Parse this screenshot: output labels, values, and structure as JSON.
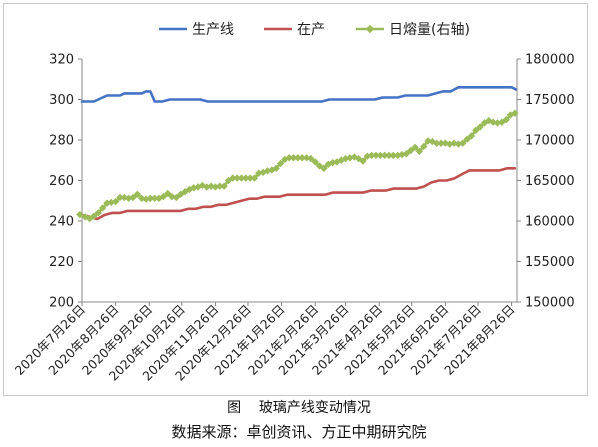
{
  "figure": {
    "caption_number": "图",
    "caption_title": "玻璃产线变动情况",
    "source_note": "数据来源：卓创资讯、方正中期研究院"
  },
  "chart_data": {
    "type": "line",
    "x_ticks": [
      "2020年7月26日",
      "2020年8月26日",
      "2020年9月26日",
      "2020年10月26日",
      "2020年11月26日",
      "2020年12月26日",
      "2021年1月26日",
      "2021年2月26日",
      "2021年3月26日",
      "2021年4月26日",
      "2021年5月26日",
      "2021年6月26日",
      "2021年7月26日",
      "2021年8月26日"
    ],
    "y_left_ticks": [
      "200",
      "220",
      "240",
      "260",
      "280",
      "300",
      "320"
    ],
    "y_right_ticks": [
      "150000",
      "155000",
      "160000",
      "165000",
      "170000",
      "175000",
      "180000"
    ],
    "ylim_left": [
      200,
      320
    ],
    "ylim_right": [
      150000,
      180000
    ],
    "grid": false,
    "legend_position": "top",
    "colors": {
      "生产线": "#4472c4",
      "在产": "#c0504d",
      "日熔量(右轴)": "#9bbb59"
    },
    "series": [
      {
        "name": "生产线",
        "axis": "left",
        "x": [
          "2020-07-26",
          "2020-07-29",
          "2020-08-02",
          "2020-08-06",
          "2020-08-10",
          "2020-08-14",
          "2020-08-18",
          "2020-08-22",
          "2020-08-26",
          "2020-08-30",
          "2020-09-03",
          "2020-09-07",
          "2020-09-11",
          "2020-09-15",
          "2020-09-19",
          "2020-09-23",
          "2020-09-27",
          "2020-10-01",
          "2020-10-08",
          "2020-10-15",
          "2020-10-22",
          "2020-10-29",
          "2020-11-05",
          "2020-11-12",
          "2020-11-19",
          "2020-11-26",
          "2020-12-03",
          "2020-12-10",
          "2020-12-17",
          "2020-12-24",
          "2020-12-31",
          "2021-01-07",
          "2021-01-14",
          "2021-01-21",
          "2021-01-28",
          "2021-02-04",
          "2021-02-11",
          "2021-02-18",
          "2021-02-25",
          "2021-03-04",
          "2021-03-11",
          "2021-03-18",
          "2021-03-25",
          "2021-04-01",
          "2021-04-08",
          "2021-04-15",
          "2021-04-22",
          "2021-04-29",
          "2021-05-06",
          "2021-05-13",
          "2021-05-20",
          "2021-05-27",
          "2021-06-03",
          "2021-06-10",
          "2021-06-17",
          "2021-06-24",
          "2021-07-01",
          "2021-07-08",
          "2021-07-15",
          "2021-07-22",
          "2021-07-29",
          "2021-08-05",
          "2021-08-12",
          "2021-08-19",
          "2021-08-26",
          "2021-08-30"
        ],
        "y": [
          299,
          299,
          299,
          299,
          300,
          301,
          302,
          302,
          302,
          302,
          303,
          303,
          303,
          303,
          303,
          304,
          304,
          299,
          299,
          300,
          300,
          300,
          300,
          300,
          299,
          299,
          299,
          299,
          299,
          299,
          299,
          299,
          299,
          299,
          299,
          299,
          299,
          299,
          299,
          299,
          300,
          300,
          300,
          300,
          300,
          300,
          300,
          301,
          301,
          301,
          302,
          302,
          302,
          302,
          303,
          304,
          304,
          306,
          306,
          306,
          306,
          306,
          306,
          306,
          306,
          305
        ]
      },
      {
        "name": "在产",
        "axis": "left",
        "x": [
          "2020-07-26",
          "2020-08-02",
          "2020-08-09",
          "2020-08-16",
          "2020-08-23",
          "2020-08-30",
          "2020-09-06",
          "2020-09-13",
          "2020-09-20",
          "2020-09-27",
          "2020-10-04",
          "2020-10-11",
          "2020-10-18",
          "2020-10-25",
          "2020-11-01",
          "2020-11-08",
          "2020-11-15",
          "2020-11-22",
          "2020-11-29",
          "2020-12-06",
          "2020-12-13",
          "2020-12-20",
          "2020-12-27",
          "2021-01-03",
          "2021-01-10",
          "2021-01-17",
          "2021-01-24",
          "2021-01-31",
          "2021-02-07",
          "2021-02-14",
          "2021-02-21",
          "2021-02-28",
          "2021-03-07",
          "2021-03-14",
          "2021-03-21",
          "2021-03-28",
          "2021-04-04",
          "2021-04-11",
          "2021-04-18",
          "2021-04-25",
          "2021-05-02",
          "2021-05-09",
          "2021-05-16",
          "2021-05-23",
          "2021-05-30",
          "2021-06-06",
          "2021-06-13",
          "2021-06-20",
          "2021-06-27",
          "2021-07-04",
          "2021-07-11",
          "2021-07-18",
          "2021-07-25",
          "2021-08-01",
          "2021-08-08",
          "2021-08-15",
          "2021-08-22",
          "2021-08-29"
        ],
        "y": [
          243,
          242,
          241,
          243,
          244,
          244,
          245,
          245,
          245,
          245,
          245,
          245,
          245,
          245,
          246,
          246,
          247,
          247,
          248,
          248,
          249,
          250,
          251,
          251,
          252,
          252,
          252,
          253,
          253,
          253,
          253,
          253,
          253,
          254,
          254,
          254,
          254,
          254,
          255,
          255,
          255,
          256,
          256,
          256,
          256,
          257,
          259,
          260,
          260,
          261,
          263,
          265,
          265,
          265,
          265,
          265,
          266,
          266
        ]
      },
      {
        "name": "日熔量(右轴)",
        "axis": "right",
        "x": [
          "2020-07-24",
          "2020-07-29",
          "2020-08-02",
          "2020-08-06",
          "2020-08-10",
          "2020-08-14",
          "2020-08-18",
          "2020-08-22",
          "2020-08-26",
          "2020-08-30",
          "2020-09-03",
          "2020-09-07",
          "2020-09-11",
          "2020-09-15",
          "2020-09-19",
          "2020-09-23",
          "2020-09-27",
          "2020-10-01",
          "2020-10-05",
          "2020-10-09",
          "2020-10-13",
          "2020-10-17",
          "2020-10-21",
          "2020-10-25",
          "2020-10-29",
          "2020-11-02",
          "2020-11-06",
          "2020-11-10",
          "2020-11-14",
          "2020-11-18",
          "2020-11-22",
          "2020-11-26",
          "2020-11-30",
          "2020-12-04",
          "2020-12-08",
          "2020-12-12",
          "2020-12-16",
          "2020-12-20",
          "2020-12-24",
          "2020-12-28",
          "2021-01-01",
          "2021-01-05",
          "2021-01-09",
          "2021-01-13",
          "2021-01-17",
          "2021-01-21",
          "2021-01-25",
          "2021-01-29",
          "2021-02-02",
          "2021-02-06",
          "2021-02-10",
          "2021-02-14",
          "2021-02-18",
          "2021-02-22",
          "2021-02-26",
          "2021-03-02",
          "2021-03-06",
          "2021-03-10",
          "2021-03-14",
          "2021-03-18",
          "2021-03-22",
          "2021-03-26",
          "2021-03-30",
          "2021-04-03",
          "2021-04-07",
          "2021-04-11",
          "2021-04-15",
          "2021-04-19",
          "2021-04-23",
          "2021-04-27",
          "2021-05-01",
          "2021-05-05",
          "2021-05-09",
          "2021-05-13",
          "2021-05-17",
          "2021-05-21",
          "2021-05-25",
          "2021-05-29",
          "2021-06-02",
          "2021-06-06",
          "2021-06-10",
          "2021-06-14",
          "2021-06-18",
          "2021-06-22",
          "2021-06-26",
          "2021-06-30",
          "2021-07-04",
          "2021-07-08",
          "2021-07-12",
          "2021-07-16",
          "2021-07-20",
          "2021-07-24",
          "2021-07-28",
          "2021-08-01",
          "2021-08-05",
          "2021-08-09",
          "2021-08-13",
          "2021-08-17",
          "2021-08-21",
          "2021-08-25",
          "2021-08-29"
        ],
        "y": [
          160800,
          160500,
          160300,
          160600,
          161000,
          161600,
          162200,
          162300,
          162400,
          162900,
          162900,
          162800,
          162900,
          163300,
          162800,
          162700,
          162800,
          162800,
          162800,
          163000,
          163400,
          163000,
          162900,
          163300,
          163600,
          163900,
          164100,
          164200,
          164400,
          164200,
          164300,
          164200,
          164300,
          164300,
          165000,
          165300,
          165300,
          165300,
          165300,
          165300,
          165300,
          165900,
          166000,
          166200,
          166300,
          166500,
          167100,
          167600,
          167800,
          167800,
          167800,
          167800,
          167800,
          167700,
          167300,
          166800,
          166500,
          167000,
          167200,
          167300,
          167500,
          167700,
          167800,
          167900,
          167700,
          167400,
          168000,
          168100,
          168100,
          168100,
          168100,
          168100,
          168100,
          168100,
          168200,
          168300,
          168700,
          169100,
          168600,
          169200,
          169900,
          169800,
          169600,
          169600,
          169600,
          169500,
          169600,
          169500,
          169600,
          170100,
          170500,
          171200,
          171600,
          172100,
          172400,
          172200,
          172100,
          172200,
          172500,
          173100,
          173300
        ]
      }
    ]
  }
}
